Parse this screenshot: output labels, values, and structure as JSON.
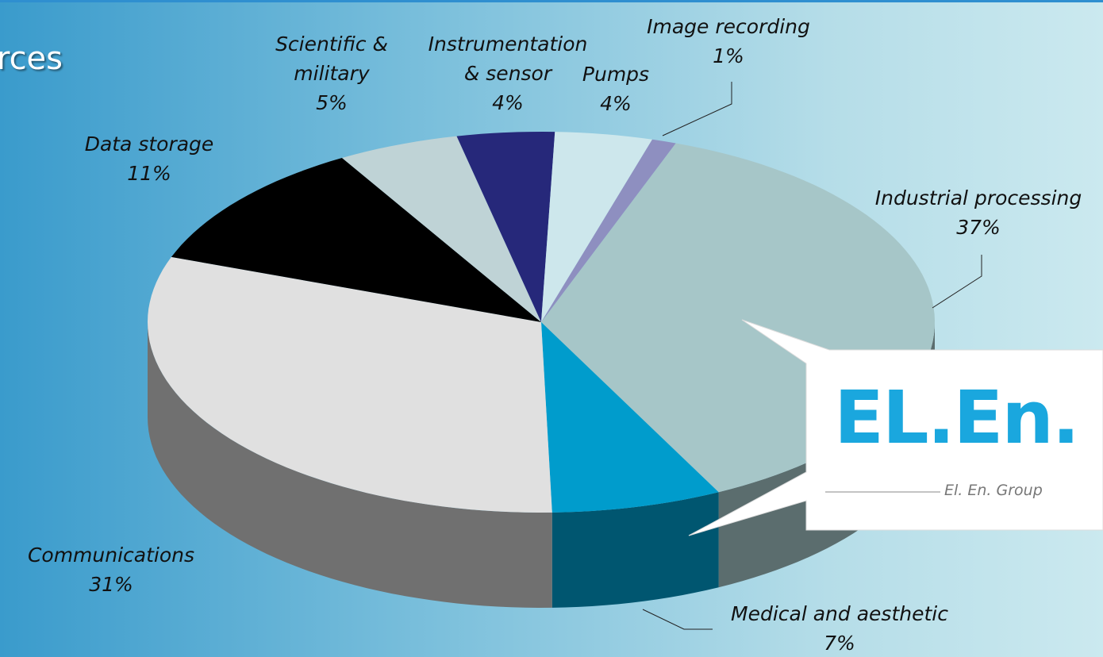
{
  "title": "rces",
  "chart_data": {
    "type": "pie3d",
    "categories": [
      "Industrial processing",
      "Medical and aesthetic",
      "Communications",
      "Data storage",
      "Scientific & military",
      "Instrumentation & sensor",
      "Pumps",
      "Image recording"
    ],
    "values": [
      37,
      7,
      31,
      11,
      5,
      4,
      4,
      1
    ],
    "value_labels": [
      "37%",
      "7%",
      "31%",
      "11%",
      "5%",
      "4%",
      "4%",
      "1%"
    ],
    "colors": [
      "#a6c6c8",
      "#009ccc",
      "#e0e0e0",
      "#000000",
      "#bfd3d6",
      "#26287a",
      "#cde7ec",
      "#8e8fc0"
    ]
  },
  "logo": {
    "mark": "EL.En.",
    "text": "El. En. Group"
  }
}
